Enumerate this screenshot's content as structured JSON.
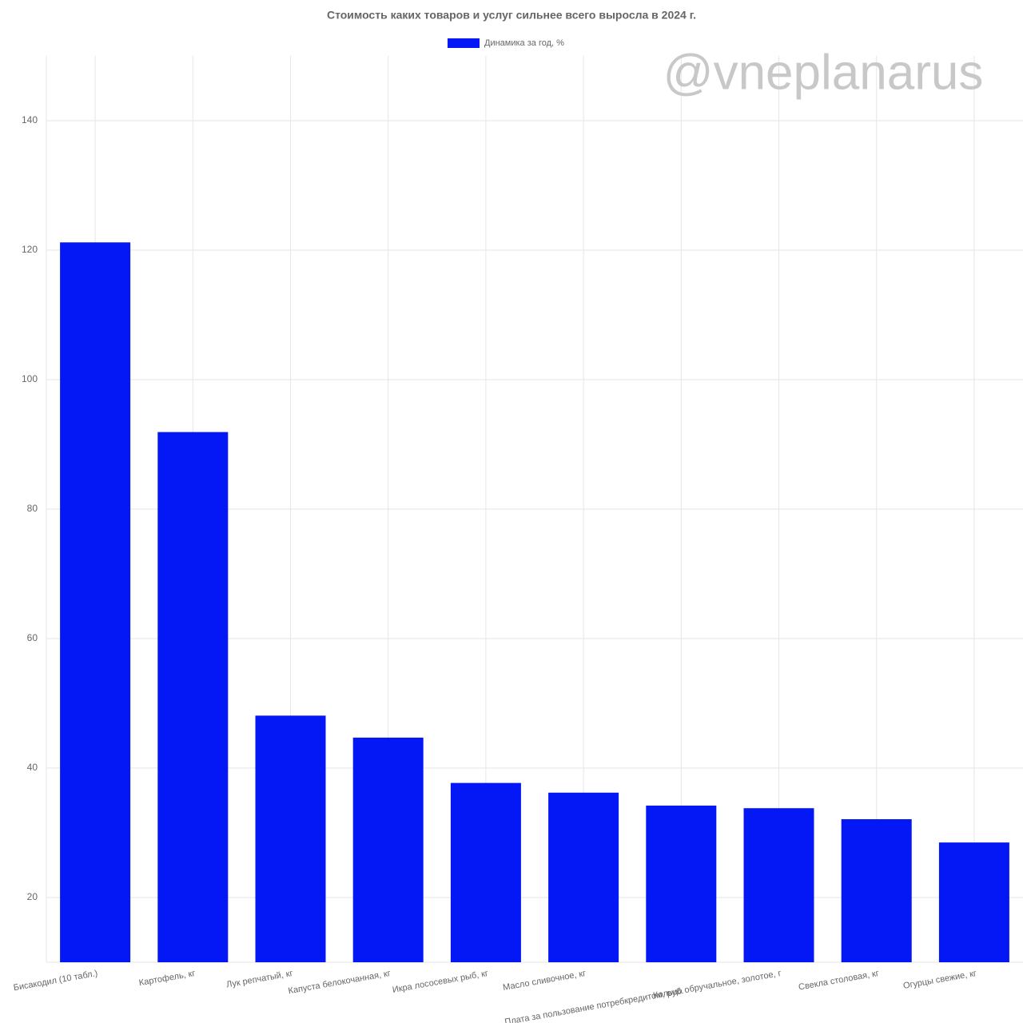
{
  "chart_data": {
    "type": "bar",
    "title": "Стоимость каких товаров и услуг сильнее всего выросла в 2024 г.",
    "watermark": "@vneplanarus",
    "categories": [
      "Бисакодил (10 табл.)",
      "Картофель, кг",
      "Лук репчатый, кг",
      "Капуста белокочанная, кг",
      "Икра лососевых рыб, кг",
      "Масло сливочное, кг",
      "Плата за пользование потребкредитом, руб.",
      "Кольцо обручальное, золотое, г",
      "Свекла столовая, кг",
      "Огурцы свежие, кг"
    ],
    "series": [
      {
        "name": "Динамика за год, %",
        "color": "#0418f5",
        "values": [
          121.2,
          91.9,
          48.1,
          44.7,
          37.7,
          36.2,
          34.2,
          33.8,
          32.1,
          28.5
        ]
      }
    ],
    "ylim": [
      10,
      150
    ],
    "yticks": [
      20,
      40,
      60,
      80,
      100,
      120,
      140
    ],
    "grid": true
  }
}
